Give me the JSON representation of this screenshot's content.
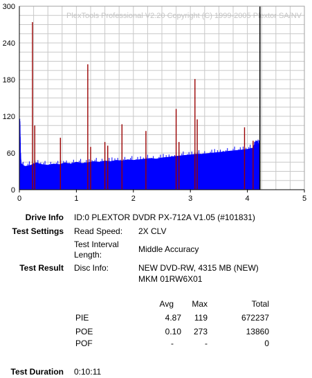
{
  "chart_data": {
    "type": "line",
    "watermark": "PlexTools Professional V2.20 Copyright (C) 1999-2005 Plextor SA/NV",
    "xlim": [
      0,
      5
    ],
    "ylim": [
      0,
      300
    ],
    "x_ticks": [
      "0",
      "1",
      "2",
      "3",
      "4",
      "5"
    ],
    "y_ticks": [
      "0",
      "60",
      "120",
      "180",
      "240",
      "300"
    ],
    "end_marker_x": 4.22,
    "series": [
      {
        "color": "#0000ff",
        "points": [
          [
            0.0,
            105
          ],
          [
            0.01,
            112
          ],
          [
            0.02,
            60
          ],
          [
            0.03,
            42
          ],
          [
            0.1,
            38
          ],
          [
            0.2,
            40
          ],
          [
            0.3,
            44
          ],
          [
            0.4,
            41
          ],
          [
            0.5,
            40
          ],
          [
            0.6,
            42
          ],
          [
            0.7,
            41
          ],
          [
            0.8,
            44
          ],
          [
            0.9,
            42
          ],
          [
            1.0,
            45
          ],
          [
            1.1,
            43
          ],
          [
            1.2,
            44
          ],
          [
            1.3,
            46
          ],
          [
            1.4,
            45
          ],
          [
            1.5,
            47
          ],
          [
            1.6,
            46
          ],
          [
            1.7,
            48
          ],
          [
            1.8,
            47
          ],
          [
            1.9,
            49
          ],
          [
            2.0,
            48
          ],
          [
            2.1,
            49
          ],
          [
            2.2,
            50
          ],
          [
            2.3,
            51
          ],
          [
            2.4,
            50
          ],
          [
            2.5,
            52
          ],
          [
            2.6,
            53
          ],
          [
            2.7,
            54
          ],
          [
            2.8,
            55
          ],
          [
            2.9,
            56
          ],
          [
            3.0,
            57
          ],
          [
            3.1,
            58
          ],
          [
            3.2,
            58
          ],
          [
            3.3,
            59
          ],
          [
            3.4,
            60
          ],
          [
            3.5,
            61
          ],
          [
            3.6,
            62
          ],
          [
            3.7,
            63
          ],
          [
            3.8,
            64
          ],
          [
            3.9,
            65
          ],
          [
            4.0,
            66
          ],
          [
            4.1,
            68
          ],
          [
            4.15,
            80
          ],
          [
            4.2,
            75
          ],
          [
            4.22,
            72
          ]
        ]
      },
      {
        "color": "#990000",
        "spikes": [
          [
            0.23,
            274
          ],
          [
            0.27,
            105
          ],
          [
            0.72,
            85
          ],
          [
            1.2,
            205
          ],
          [
            1.25,
            70
          ],
          [
            1.5,
            78
          ],
          [
            1.55,
            72
          ],
          [
            1.8,
            107
          ],
          [
            2.22,
            96
          ],
          [
            2.75,
            132
          ],
          [
            2.8,
            78
          ],
          [
            3.08,
            181
          ],
          [
            3.12,
            115
          ],
          [
            3.95,
            102
          ],
          [
            4.1,
            80
          ]
        ]
      }
    ]
  },
  "info": {
    "drive_label": "Drive Info",
    "drive_value": "ID:0 PLEXTOR DVDR PX-712A V1.05 (#101831)",
    "settings_label": "Test Settings",
    "read_speed_label": "Read Speed:",
    "read_speed_value": "2X CLV",
    "interval_label_1": "Test Interval",
    "interval_label_2": "Length:",
    "interval_value": "Middle Accuracy",
    "result_label": "Test Result",
    "disc_label": "Disc Info:",
    "disc_value_1": "NEW DVD-RW, 4315 MB (NEW)",
    "disc_value_2": "MKM 01RW6X01",
    "duration_label": "Test Duration",
    "duration_value": "0:10:11"
  },
  "stats": {
    "headers": [
      "Avg",
      "Max",
      "Total"
    ],
    "rows": [
      {
        "name": "PIE",
        "avg": "4.87",
        "max": "119",
        "total": "672237"
      },
      {
        "name": "POE",
        "avg": "0.10",
        "max": "273",
        "total": "13860"
      },
      {
        "name": "POF",
        "avg": "-",
        "max": "-",
        "total": "0"
      }
    ]
  }
}
